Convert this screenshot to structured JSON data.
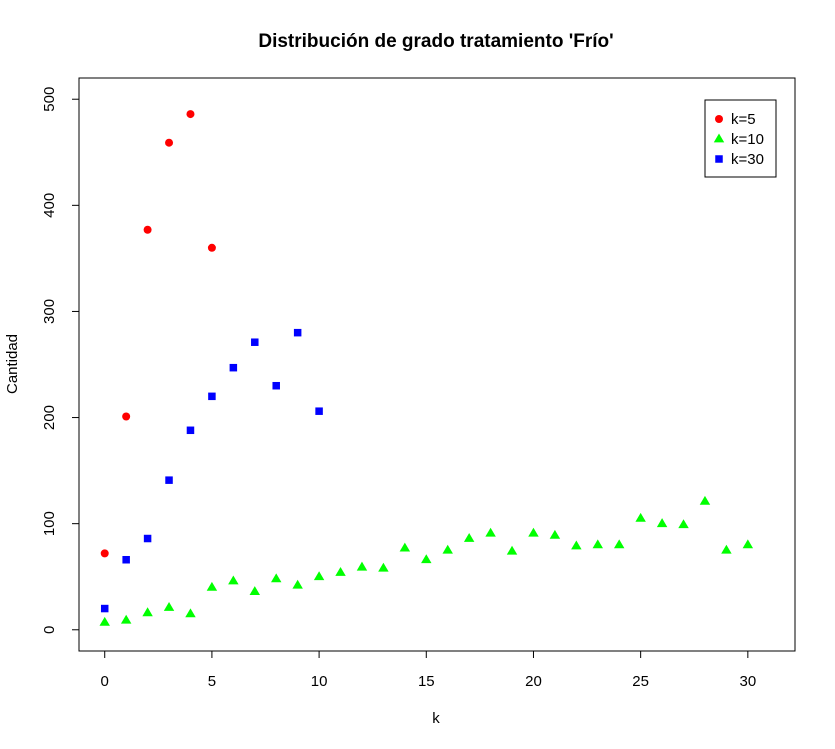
{
  "chart_data": {
    "type": "scatter",
    "title": "Distribución de grado tratamiento 'Frío'",
    "xlabel": "k",
    "ylabel": "Cantidad",
    "xlim": [
      -1.2,
      32.2
    ],
    "ylim": [
      -20,
      520
    ],
    "xticks": [
      0,
      5,
      10,
      15,
      20,
      25,
      30
    ],
    "yticks": [
      0,
      100,
      200,
      300,
      400,
      500
    ],
    "grid": false,
    "legend_position": "top-right",
    "series": [
      {
        "name": "k=5",
        "color": "#ff0000",
        "marker": "circle",
        "x": [
          0,
          1,
          2,
          3,
          4,
          5
        ],
        "y": [
          72,
          201,
          377,
          459,
          486,
          360
        ]
      },
      {
        "name": "k=10",
        "color": "#00ff00",
        "marker": "triangle",
        "x": [
          0,
          1,
          2,
          3,
          4,
          5,
          6,
          7,
          8,
          9,
          10,
          11,
          12,
          13,
          14,
          15,
          16,
          17,
          18,
          19,
          20,
          21,
          22,
          23,
          24,
          25,
          26,
          27,
          28,
          29,
          30
        ],
        "y": [
          7,
          9,
          16,
          21,
          15,
          40,
          46,
          36,
          48,
          42,
          50,
          54,
          59,
          58,
          77,
          66,
          75,
          86,
          91,
          74,
          91,
          89,
          79,
          80,
          80,
          105,
          100,
          99,
          121,
          75,
          80
        ]
      },
      {
        "name": "k=30",
        "color": "#0000ff",
        "marker": "square",
        "x": [
          0,
          1,
          2,
          3,
          4,
          5,
          6,
          7,
          8,
          9,
          10
        ],
        "y": [
          20,
          66,
          86,
          141,
          188,
          220,
          247,
          271,
          230,
          280,
          206
        ]
      }
    ]
  }
}
